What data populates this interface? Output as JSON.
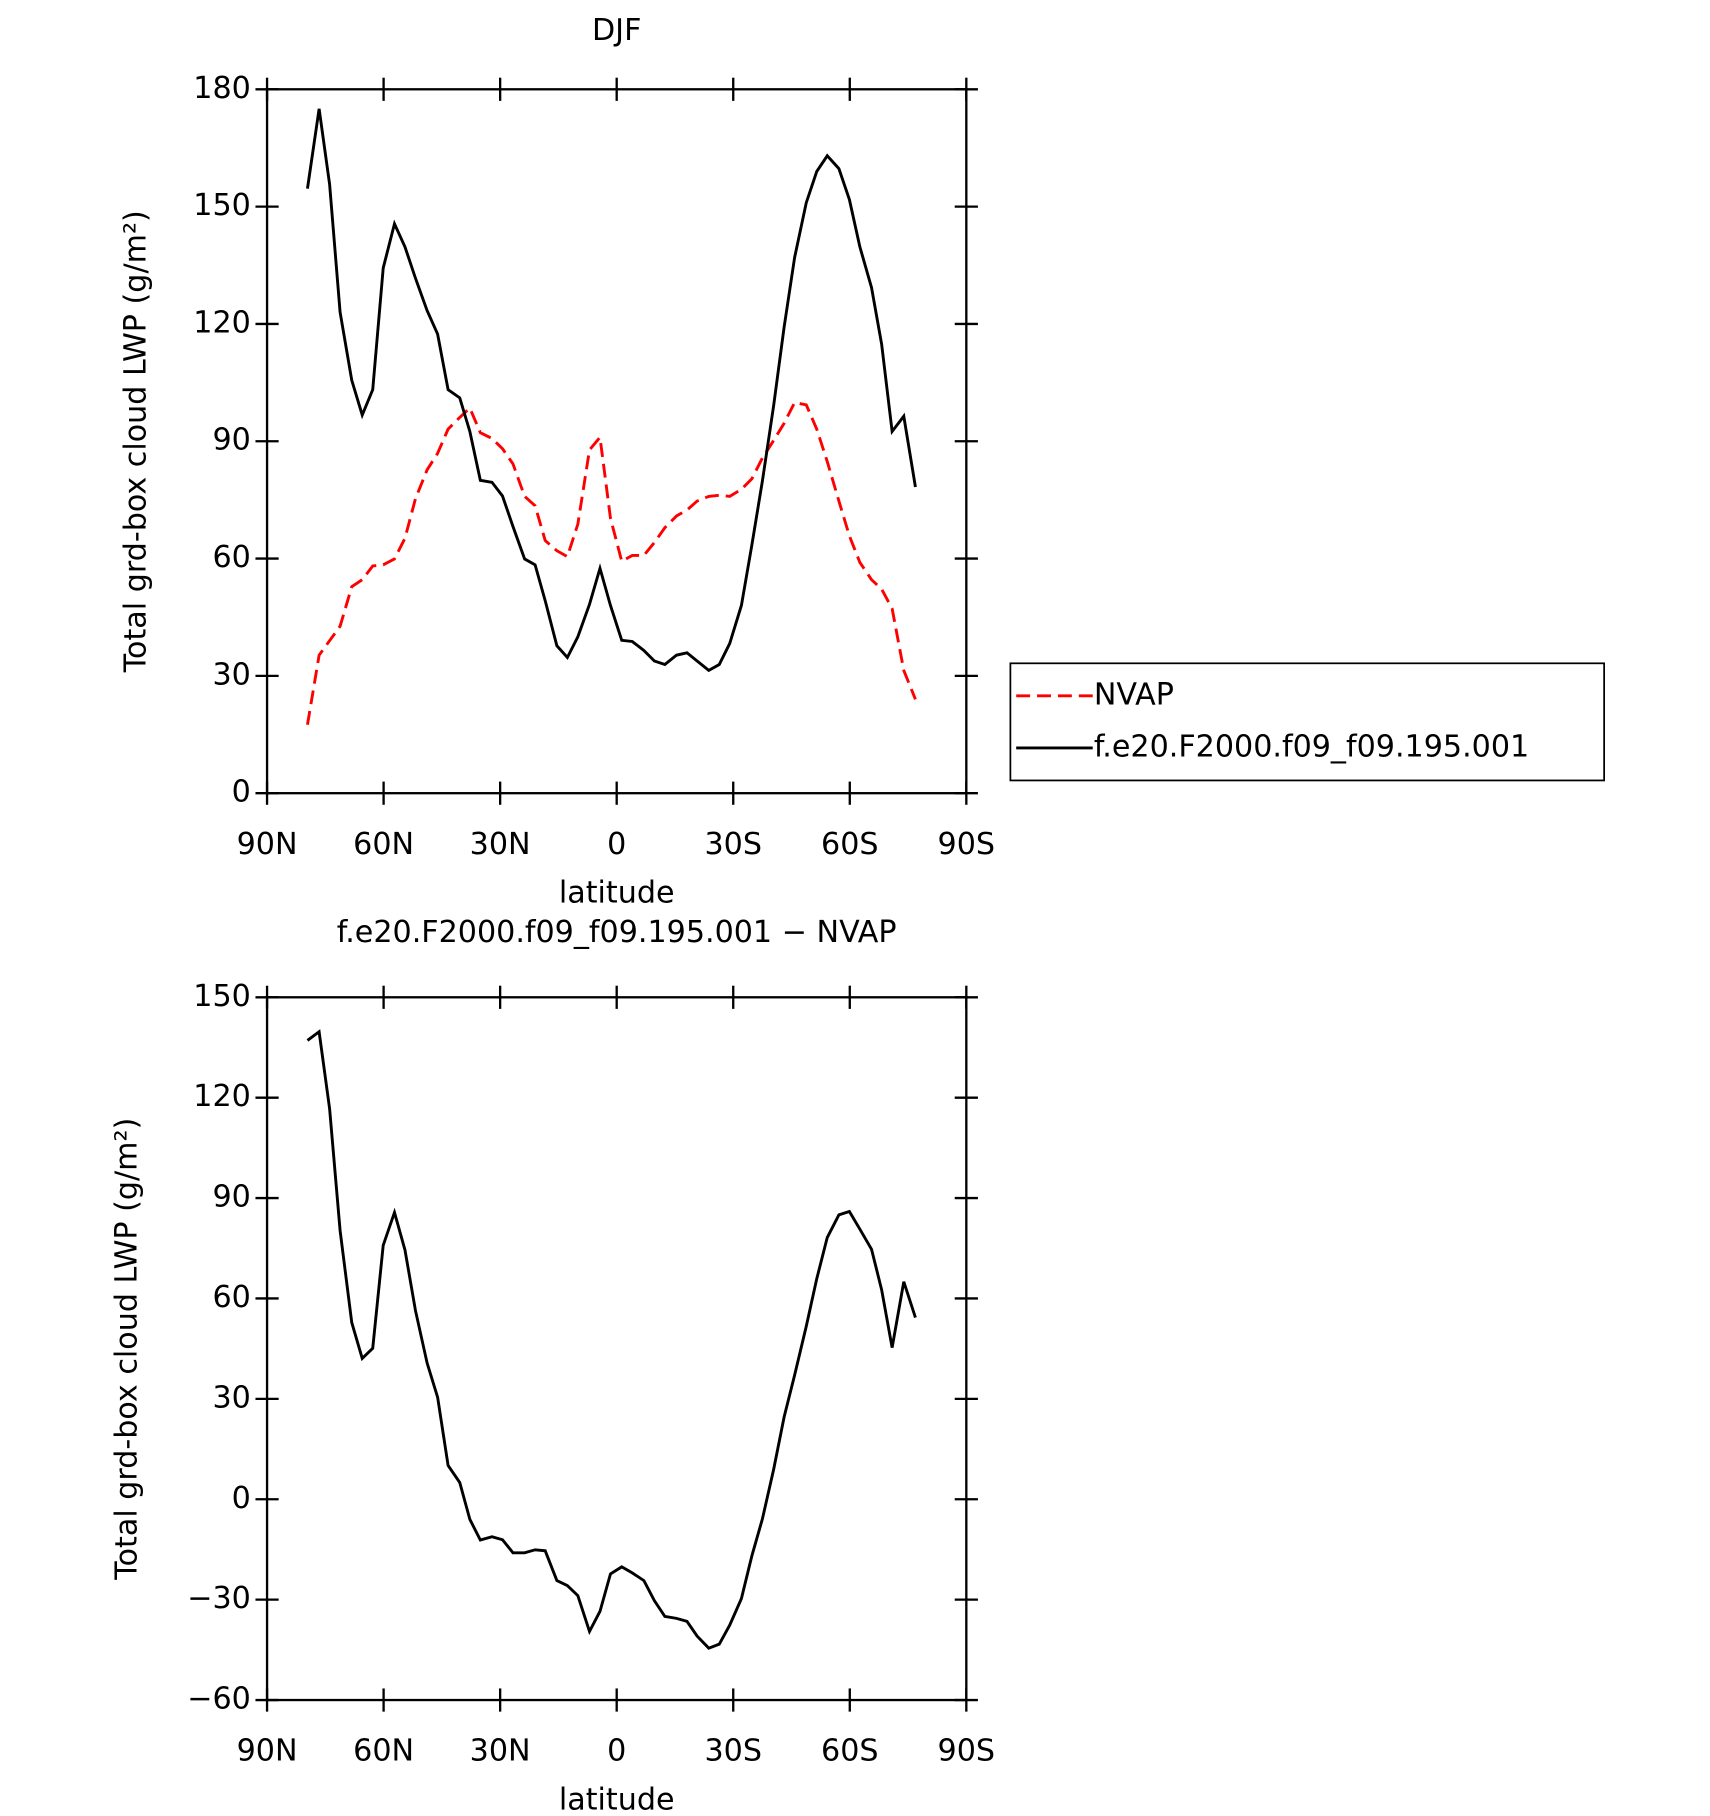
{
  "chart_data": [
    {
      "type": "line",
      "title": "DJF",
      "xlabel": "latitude",
      "ylabel": "Total grd-box cloud LWP (g/m²)",
      "x": [
        79.6,
        76.6,
        73.9,
        71.2,
        68.2,
        65.5,
        62.8,
        60.1,
        57.2,
        54.5,
        51.8,
        48.8,
        46.1,
        43.4,
        40.4,
        37.8,
        35.1,
        32.1,
        29.4,
        26.7,
        23.7,
        21.0,
        18.4,
        15.4,
        12.7,
        10.0,
        7.0,
        4.3,
        1.6,
        -1.3,
        -4.0,
        -7.0,
        -9.7,
        -12.4,
        -15.4,
        -18.1,
        -20.7,
        -23.7,
        -26.4,
        -29.1,
        -32.1,
        -34.8,
        -37.5,
        -40.4,
        -43.1,
        -45.8,
        -48.8,
        -51.5,
        -54.2,
        -57.2,
        -59.9,
        -62.6,
        -65.6,
        -68.2,
        -70.9,
        -73.9,
        -76.9
      ],
      "series": [
        {
          "name": "NVAP",
          "color": "#ff0000",
          "style": "dashed",
          "values": [
            17.5,
            35.3,
            39,
            42.7,
            52.8,
            54.6,
            58.1,
            58.4,
            59.9,
            65.2,
            75.3,
            82.7,
            86.9,
            93.1,
            96.1,
            98.5,
            92.2,
            90.7,
            88.1,
            84.2,
            75.9,
            73.5,
            64.6,
            62,
            60.5,
            68.8,
            87.8,
            91,
            70.3,
            59.3,
            60.8,
            60.8,
            64.1,
            67.9,
            70.9,
            72.4,
            74.7,
            75.9,
            76.2,
            75.9,
            77.7,
            80.4,
            85.7,
            90.2,
            94.6,
            99.9,
            99.3,
            93.1,
            84.8,
            74.7,
            65.8,
            59,
            54.6,
            52.2,
            47.2,
            31.4,
            24
          ]
        },
        {
          "name": "f.e20.F2000.f09_f09.195.001",
          "color": "#000000",
          "style": "solid",
          "values": [
            154.6,
            175,
            155.7,
            123,
            105.6,
            96.7,
            103.2,
            134.3,
            145.6,
            139.7,
            131.7,
            123.4,
            117.4,
            103.2,
            101.1,
            92.5,
            80,
            79.5,
            76,
            68.2,
            59.9,
            58.4,
            49.2,
            37.7,
            34.7,
            40,
            48.3,
            57.5,
            48,
            39.1,
            38.8,
            36.5,
            33.8,
            32.9,
            35.3,
            35.9,
            33.8,
            31.4,
            32.9,
            38.3,
            48,
            63.5,
            79.8,
            99.1,
            119.2,
            137,
            151,
            159,
            163,
            159.7,
            151.8,
            139.7,
            129.3,
            114.8,
            92.5,
            96.4,
            78.3
          ]
        }
      ],
      "xlim": [
        90,
        -90
      ],
      "xticks": [
        {
          "value": 90,
          "label": "90N"
        },
        {
          "value": 60,
          "label": "60N"
        },
        {
          "value": 30,
          "label": "30N"
        },
        0,
        {
          "value": -30,
          "label": "30S"
        },
        {
          "value": -60,
          "label": "60S"
        },
        {
          "value": -90,
          "label": "90S"
        }
      ],
      "ylim": [
        0,
        180
      ],
      "yticks": [
        0,
        30,
        60,
        90,
        120,
        150,
        180
      ],
      "legend": "right"
    },
    {
      "type": "line",
      "title": "f.e20.F2000.f09_f09.195.001 − NVAP",
      "xlabel": "latitude",
      "ylabel": "Total grd-box cloud LWP (g/m²)",
      "x": [
        79.6,
        76.6,
        73.9,
        71.2,
        68.2,
        65.5,
        62.8,
        60.1,
        57.2,
        54.5,
        51.8,
        48.8,
        46.1,
        43.4,
        40.4,
        37.8,
        35.1,
        32.1,
        29.4,
        26.7,
        23.7,
        21.0,
        18.4,
        15.4,
        12.7,
        10.0,
        7.0,
        4.3,
        1.6,
        -1.3,
        -4.0,
        -7.0,
        -9.7,
        -12.4,
        -15.4,
        -18.1,
        -20.7,
        -23.7,
        -26.4,
        -29.1,
        -32.1,
        -34.8,
        -37.5,
        -40.4,
        -43.1,
        -45.8,
        -48.8,
        -51.5,
        -54.2,
        -57.2,
        -59.9,
        -62.6,
        -65.6,
        -68.2,
        -70.9,
        -73.9,
        -76.9
      ],
      "series": [
        {
          "color": "#000000",
          "style": "solid",
          "values": [
            137.1,
            139.7,
            116.7,
            80.3,
            52.8,
            42.1,
            45.1,
            75.9,
            85.7,
            74.5,
            56.4,
            40.7,
            30.5,
            10.1,
            5.0,
            -6.0,
            -12.2,
            -11.2,
            -12.1,
            -16.0,
            -16.0,
            -15.1,
            -15.4,
            -24.3,
            -25.8,
            -28.8,
            -39.5,
            -33.5,
            -22.3,
            -20.2,
            -22.0,
            -24.3,
            -30.3,
            -35.0,
            -35.6,
            -36.5,
            -40.9,
            -44.5,
            -43.3,
            -37.6,
            -29.7,
            -16.9,
            -5.9,
            8.9,
            24.6,
            37.1,
            51.7,
            65.9,
            78.2,
            85.0,
            86.0,
            80.7,
            74.7,
            62.6,
            45.3,
            65.0,
            54.3
          ]
        }
      ],
      "xlim": [
        90,
        -90
      ],
      "xticks": [
        {
          "value": 90,
          "label": "90N"
        },
        {
          "value": 60,
          "label": "60N"
        },
        {
          "value": 30,
          "label": "30N"
        },
        0,
        {
          "value": -30,
          "label": "30S"
        },
        {
          "value": -60,
          "label": "60S"
        },
        {
          "value": -90,
          "label": "90S"
        }
      ],
      "ylim": [
        -60,
        150
      ],
      "yticks": [
        {
          "value": -60,
          "label": "−60"
        },
        {
          "value": -30,
          "label": "−30"
        },
        0,
        30,
        60,
        90,
        120,
        150
      ]
    }
  ]
}
